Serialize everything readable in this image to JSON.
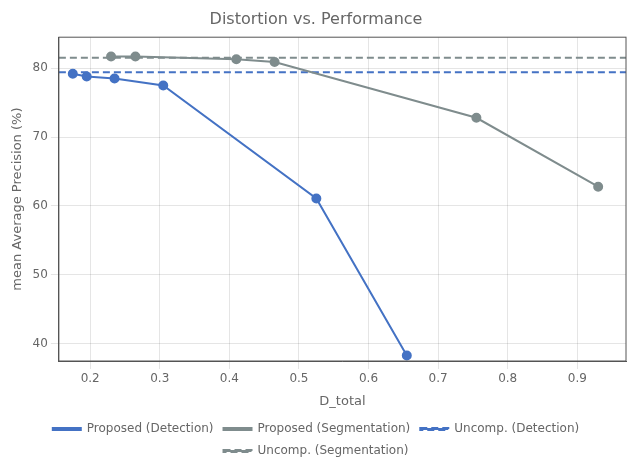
{
  "chart_data": {
    "type": "line",
    "title": "Distortion vs. Performance",
    "xlabel": "D_total",
    "ylabel": "mean Average Precision (%)",
    "xlim": [
      0.155,
      0.97
    ],
    "ylim": [
      37.5,
      84.5
    ],
    "xticks": [
      0.2,
      0.3,
      0.4,
      0.5,
      0.6,
      0.7,
      0.8,
      0.9
    ],
    "yticks": [
      40,
      50,
      60,
      70,
      80
    ],
    "grid": true,
    "legend": "bottom",
    "series": [
      {
        "name": "Uncomp. (Detection)",
        "type": "hline",
        "color": "#4472c4",
        "line_style": "dashed",
        "values": [
          79.4
        ]
      },
      {
        "name": "Uncomp. (Segmentation)",
        "type": "hline",
        "color": "#7f8c8d",
        "line_style": "dashed",
        "values": [
          81.5
        ]
      },
      {
        "name": "Proposed (Detection)",
        "color": "#4472c4",
        "marker": "circle",
        "line_style": "solid",
        "x": [
          0.175,
          0.195,
          0.235,
          0.305,
          0.525,
          0.655
        ],
        "values": [
          79.2,
          78.8,
          78.5,
          77.5,
          61.1,
          38.3
        ]
      },
      {
        "name": "Proposed (Segmentation)",
        "color": "#7f8c8d",
        "marker": "circle",
        "line_style": "solid",
        "x": [
          0.23,
          0.265,
          0.41,
          0.465,
          0.755,
          0.93
        ],
        "values": [
          81.7,
          81.7,
          81.3,
          80.9,
          72.8,
          62.8
        ]
      }
    ]
  }
}
